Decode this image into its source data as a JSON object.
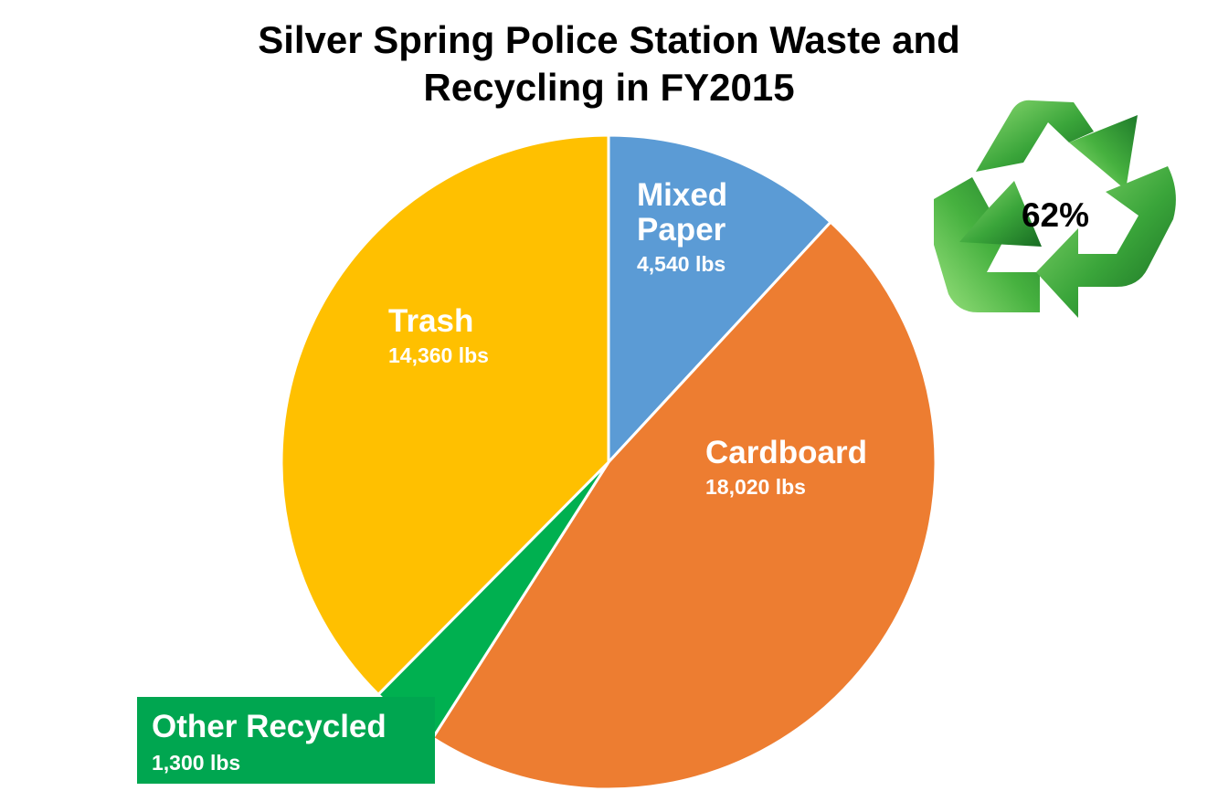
{
  "title_lines": [
    "Silver Spring Police Station Waste and",
    "Recycling in FY2015"
  ],
  "recycling_rate": "62%",
  "chart_data": {
    "type": "pie",
    "title": "Silver Spring Police Station Waste and Recycling in FY2015",
    "unit": "lbs",
    "start_angle_deg": 0,
    "direction": "clockwise",
    "slices": [
      {
        "name": "Mixed Paper",
        "value": 4540,
        "value_label": "4,540 lbs",
        "color": "#5b9bd5"
      },
      {
        "name": "Cardboard",
        "value": 18020,
        "value_label": "18,020 lbs",
        "color": "#ed7d31"
      },
      {
        "name": "Other Recycled",
        "value": 1300,
        "value_label": "1,300 lbs",
        "color": "#00b050"
      },
      {
        "name": "Trash",
        "value": 14360,
        "value_label": "14,360 lbs",
        "color": "#ffc000"
      }
    ]
  },
  "colors": {
    "label_text": "#ffffff",
    "other_box": "#00a650",
    "slice_border": "#ffffff",
    "recycle_dark": "#1e7a2a",
    "recycle_light": "#7ed36a"
  },
  "icons": {
    "recycle": "recycle-arrows-icon"
  }
}
